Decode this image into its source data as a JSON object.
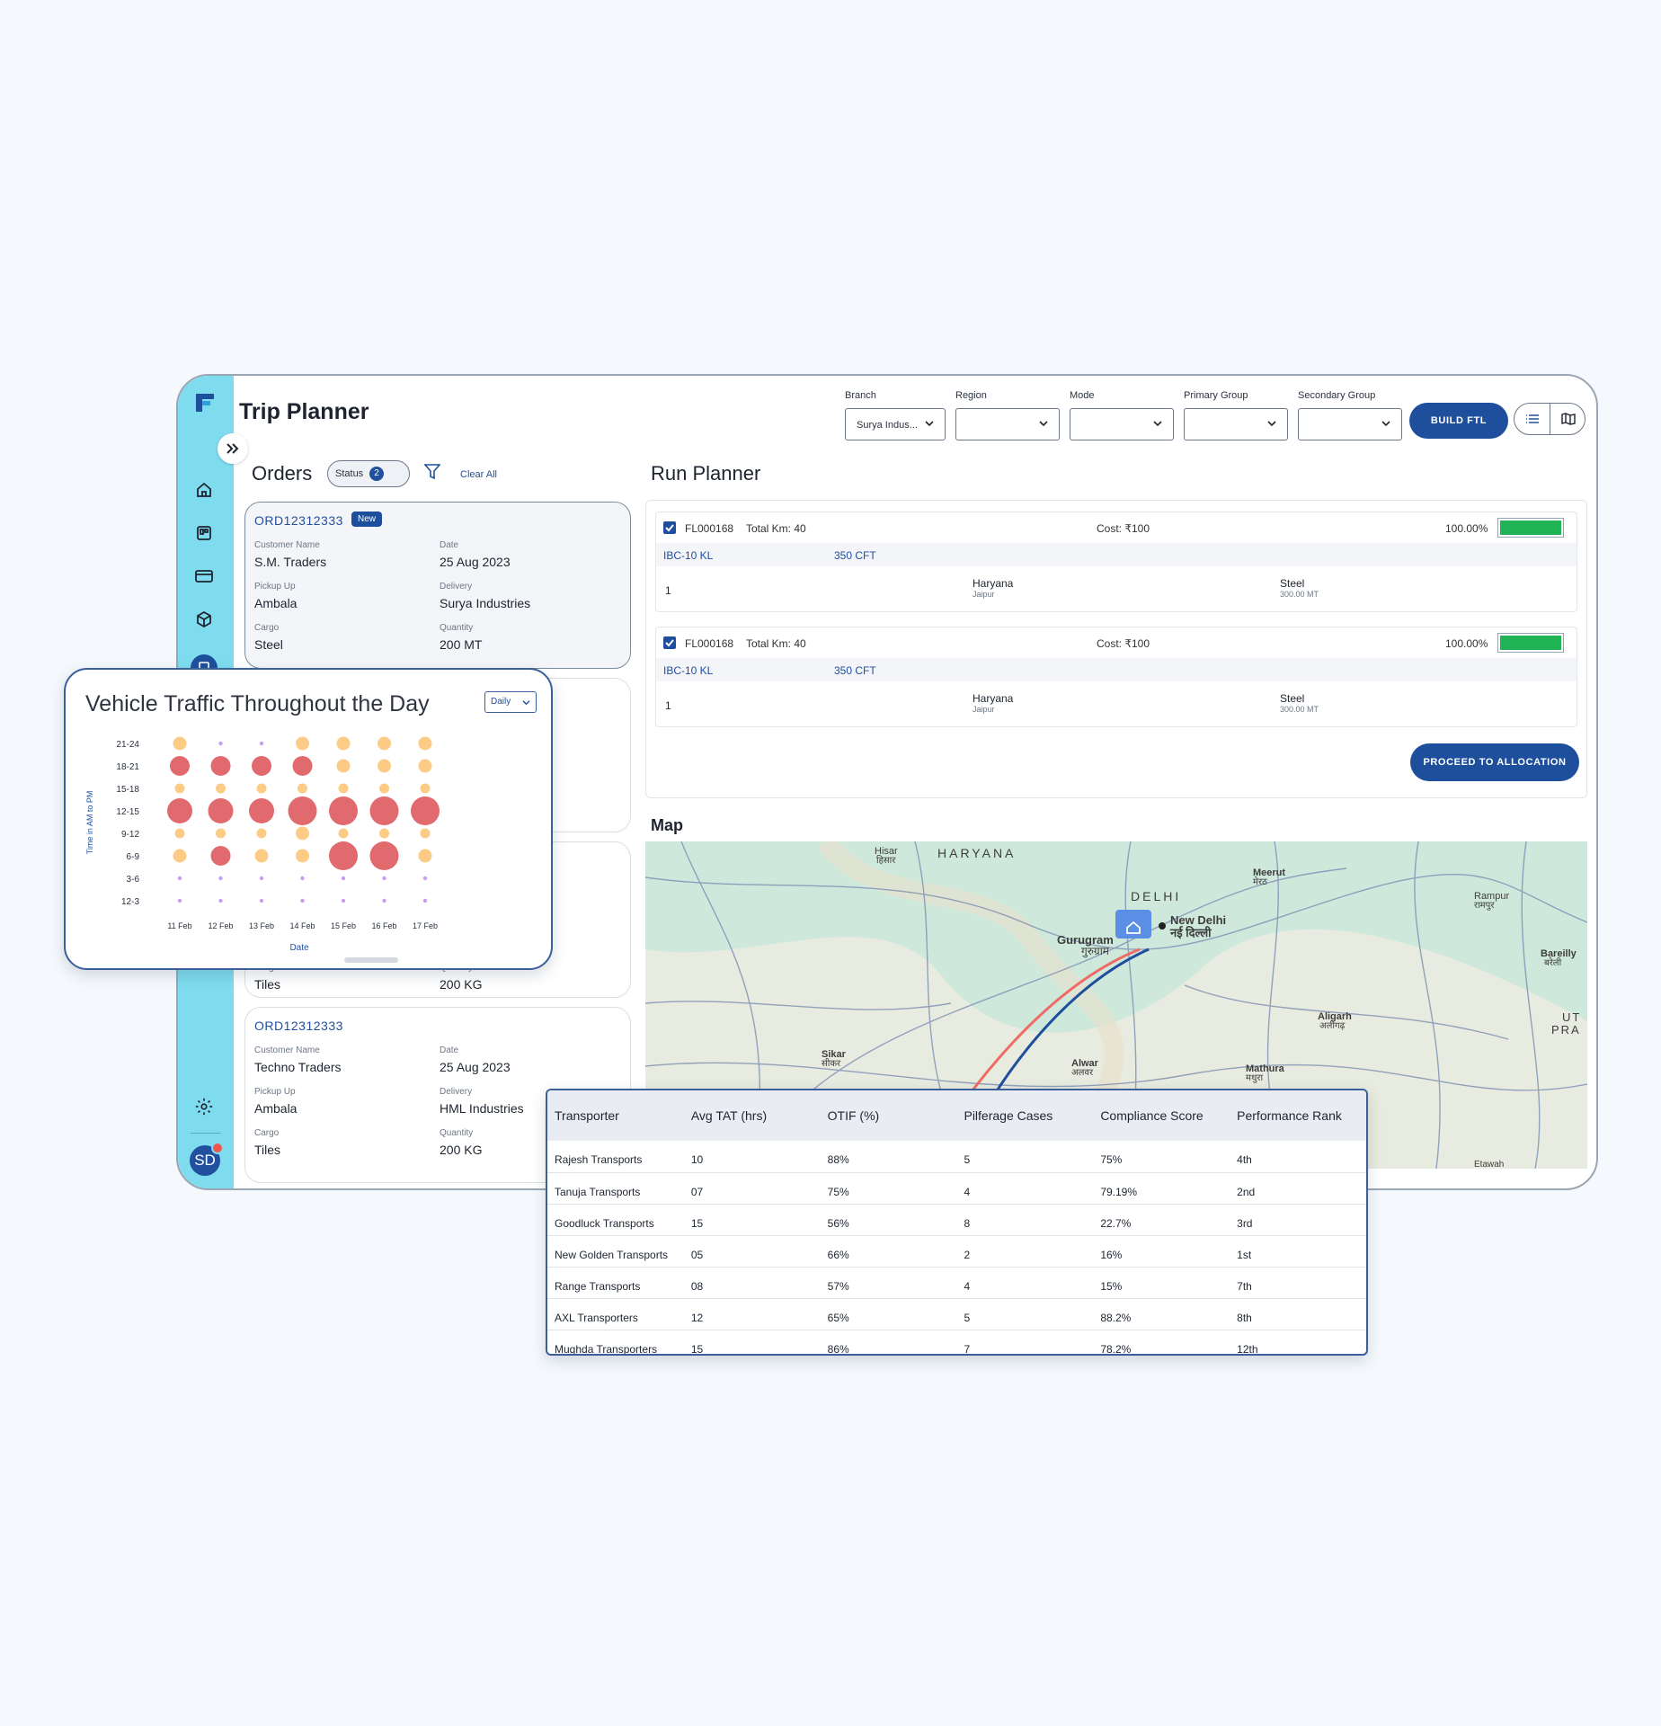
{
  "app": {
    "title": "Trip Planner"
  },
  "filters": [
    {
      "label": "Branch",
      "value": "Surya Indus..."
    },
    {
      "label": "Region",
      "value": ""
    },
    {
      "label": "Mode",
      "value": ""
    },
    {
      "label": "Primary Group",
      "value": ""
    },
    {
      "label": "Secondary Group",
      "value": ""
    }
  ],
  "toolbar": {
    "build_ftl": "BUILD FTL",
    "list_view_icon": "list-icon",
    "map_view_icon": "map-icon"
  },
  "sidebar": {
    "icons": [
      "home-icon",
      "board-icon",
      "card-icon",
      "box-icon",
      "document-icon"
    ],
    "settings_icon": "gear-icon",
    "avatar": "SD"
  },
  "orders": {
    "heading": "Orders",
    "status_label": "Status",
    "status_count": "2",
    "clear_all": "Clear All",
    "cards": [
      {
        "id": "ORD12312333",
        "badge": "New",
        "customer_label": "Customer Name",
        "customer": "S.M. Traders",
        "date_label": "Date",
        "date": "25 Aug 2023",
        "pickup_label": "Pickup Up",
        "pickup": "Ambala",
        "delivery_label": "Delivery",
        "delivery": "Surya Industries",
        "cargo_label": "Cargo",
        "cargo": "Steel",
        "quantity_label": "Quantity",
        "quantity": "200 MT"
      },
      {
        "cargo_label": "Cargo",
        "cargo": "Tiles",
        "quantity_label": "Quantity",
        "quantity": "200 KG"
      },
      {
        "id": "ORD12312333",
        "customer_label": "Customer Name",
        "customer": "Techno Traders",
        "date_label": "Date",
        "date": "25 Aug 2023",
        "pickup_label": "Pickup Up",
        "pickup": "Ambala",
        "delivery_label": "Delivery",
        "delivery": "HML Industries",
        "cargo_label": "Cargo",
        "cargo": "Tiles",
        "quantity_label": "Quantity",
        "quantity": "200 KG"
      }
    ]
  },
  "run_planner": {
    "heading": "Run Planner",
    "runs": [
      {
        "id": "FL000168",
        "total_km": "Total Km: 40",
        "cost": "Cost: ₹100",
        "percent": "100.00%",
        "fill": 1.0,
        "vehicle": "IBC-10 KL",
        "capacity": "350 CFT",
        "row_no": "1",
        "state": "Haryana",
        "city": "Jaipur",
        "material": "Steel",
        "weight": "300.00 MT"
      },
      {
        "id": "FL000168",
        "total_km": "Total Km: 40",
        "cost": "Cost: ₹100",
        "percent": "100.00%",
        "fill": 1.0,
        "vehicle": "IBC-10 KL",
        "capacity": "350 CFT",
        "row_no": "1",
        "state": "Haryana",
        "city": "Jaipur",
        "material": "Steel",
        "weight": "300.00 MT"
      }
    ],
    "proceed": "PROCEED TO ALLOCATION"
  },
  "map": {
    "heading": "Map",
    "labels": [
      "HARYANA",
      "Hisar",
      "हिसार",
      "DELHI",
      "New Delhi",
      "नई दिल्ली",
      "Gurugram",
      "गुरुग्राम",
      "Meerut",
      "मेरठ",
      "Rampur",
      "रामपुर",
      "Bareilly",
      "बरेली",
      "Aligarh",
      "अलीगढ़",
      "Mathura",
      "मथुरा",
      "Sikar",
      "सीकर",
      "Alwar",
      "अलवर",
      "UT",
      "PRA",
      "Etawah"
    ],
    "colors": {
      "route_a": "#ee6b66",
      "route_b": "#1f4f9c",
      "pin": "#5b8fe6"
    }
  },
  "chart_card": {
    "title": "Vehicle Traffic Throughout the Day",
    "period": "Daily"
  },
  "chart_data": {
    "type": "scatter",
    "title": "Vehicle Traffic Throughout the Day",
    "xlabel": "Date",
    "ylabel": "Time in AM to PM",
    "categories": [
      "11 Feb",
      "12 Feb",
      "13 Feb",
      "14 Feb",
      "15 Feb",
      "16 Feb",
      "17 Feb"
    ],
    "y_categories": [
      "12-3",
      "3-6",
      "6-9",
      "9-12",
      "12-15",
      "15-18",
      "18-21",
      "21-24"
    ],
    "level_colors": {
      "low": "#c79df0",
      "medium": "#fccb86",
      "high": "#e06a6e"
    },
    "points": [
      {
        "x": "11 Feb",
        "y": "21-24",
        "size": 3,
        "level": "medium"
      },
      {
        "x": "12 Feb",
        "y": "21-24",
        "size": 1,
        "level": "low"
      },
      {
        "x": "13 Feb",
        "y": "21-24",
        "size": 1,
        "level": "low"
      },
      {
        "x": "14 Feb",
        "y": "21-24",
        "size": 3,
        "level": "medium"
      },
      {
        "x": "15 Feb",
        "y": "21-24",
        "size": 3,
        "level": "medium"
      },
      {
        "x": "16 Feb",
        "y": "21-24",
        "size": 3,
        "level": "medium"
      },
      {
        "x": "17 Feb",
        "y": "21-24",
        "size": 3,
        "level": "medium"
      },
      {
        "x": "11 Feb",
        "y": "18-21",
        "size": 4,
        "level": "high"
      },
      {
        "x": "12 Feb",
        "y": "18-21",
        "size": 4,
        "level": "high"
      },
      {
        "x": "13 Feb",
        "y": "18-21",
        "size": 4,
        "level": "high"
      },
      {
        "x": "14 Feb",
        "y": "18-21",
        "size": 4,
        "level": "high"
      },
      {
        "x": "15 Feb",
        "y": "18-21",
        "size": 3,
        "level": "medium"
      },
      {
        "x": "16 Feb",
        "y": "18-21",
        "size": 3,
        "level": "medium"
      },
      {
        "x": "17 Feb",
        "y": "18-21",
        "size": 3,
        "level": "medium"
      },
      {
        "x": "11 Feb",
        "y": "15-18",
        "size": 2,
        "level": "medium"
      },
      {
        "x": "12 Feb",
        "y": "15-18",
        "size": 2,
        "level": "medium"
      },
      {
        "x": "13 Feb",
        "y": "15-18",
        "size": 2,
        "level": "medium"
      },
      {
        "x": "14 Feb",
        "y": "15-18",
        "size": 2,
        "level": "medium"
      },
      {
        "x": "15 Feb",
        "y": "15-18",
        "size": 2,
        "level": "medium"
      },
      {
        "x": "16 Feb",
        "y": "15-18",
        "size": 2,
        "level": "medium"
      },
      {
        "x": "17 Feb",
        "y": "15-18",
        "size": 2,
        "level": "medium"
      },
      {
        "x": "11 Feb",
        "y": "12-15",
        "size": 5,
        "level": "high"
      },
      {
        "x": "12 Feb",
        "y": "12-15",
        "size": 5,
        "level": "high"
      },
      {
        "x": "13 Feb",
        "y": "12-15",
        "size": 5,
        "level": "high"
      },
      {
        "x": "14 Feb",
        "y": "12-15",
        "size": 6,
        "level": "high"
      },
      {
        "x": "15 Feb",
        "y": "12-15",
        "size": 6,
        "level": "high"
      },
      {
        "x": "16 Feb",
        "y": "12-15",
        "size": 6,
        "level": "high"
      },
      {
        "x": "17 Feb",
        "y": "12-15",
        "size": 6,
        "level": "high"
      },
      {
        "x": "11 Feb",
        "y": "9-12",
        "size": 2,
        "level": "medium"
      },
      {
        "x": "12 Feb",
        "y": "9-12",
        "size": 2,
        "level": "medium"
      },
      {
        "x": "13 Feb",
        "y": "9-12",
        "size": 2,
        "level": "medium"
      },
      {
        "x": "14 Feb",
        "y": "9-12",
        "size": 3,
        "level": "medium"
      },
      {
        "x": "15 Feb",
        "y": "9-12",
        "size": 2,
        "level": "medium"
      },
      {
        "x": "16 Feb",
        "y": "9-12",
        "size": 2,
        "level": "medium"
      },
      {
        "x": "17 Feb",
        "y": "9-12",
        "size": 2,
        "level": "medium"
      },
      {
        "x": "11 Feb",
        "y": "6-9",
        "size": 3,
        "level": "medium"
      },
      {
        "x": "12 Feb",
        "y": "6-9",
        "size": 4,
        "level": "high"
      },
      {
        "x": "13 Feb",
        "y": "6-9",
        "size": 3,
        "level": "medium"
      },
      {
        "x": "14 Feb",
        "y": "6-9",
        "size": 3,
        "level": "medium"
      },
      {
        "x": "15 Feb",
        "y": "6-9",
        "size": 6,
        "level": "high"
      },
      {
        "x": "16 Feb",
        "y": "6-9",
        "size": 6,
        "level": "high"
      },
      {
        "x": "17 Feb",
        "y": "6-9",
        "size": 3,
        "level": "medium"
      },
      {
        "x": "11 Feb",
        "y": "3-6",
        "size": 1,
        "level": "low"
      },
      {
        "x": "12 Feb",
        "y": "3-6",
        "size": 1,
        "level": "low"
      },
      {
        "x": "13 Feb",
        "y": "3-6",
        "size": 1,
        "level": "low"
      },
      {
        "x": "14 Feb",
        "y": "3-6",
        "size": 1,
        "level": "low"
      },
      {
        "x": "15 Feb",
        "y": "3-6",
        "size": 1,
        "level": "low"
      },
      {
        "x": "16 Feb",
        "y": "3-6",
        "size": 1,
        "level": "low"
      },
      {
        "x": "17 Feb",
        "y": "3-6",
        "size": 1,
        "level": "low"
      },
      {
        "x": "11 Feb",
        "y": "12-3",
        "size": 1,
        "level": "low"
      },
      {
        "x": "12 Feb",
        "y": "12-3",
        "size": 1,
        "level": "low"
      },
      {
        "x": "13 Feb",
        "y": "12-3",
        "size": 1,
        "level": "low"
      },
      {
        "x": "14 Feb",
        "y": "12-3",
        "size": 1,
        "level": "low"
      },
      {
        "x": "15 Feb",
        "y": "12-3",
        "size": 1,
        "level": "low"
      },
      {
        "x": "16 Feb",
        "y": "12-3",
        "size": 1,
        "level": "low"
      },
      {
        "x": "17 Feb",
        "y": "12-3",
        "size": 1,
        "level": "low"
      }
    ]
  },
  "transporters": {
    "columns": [
      "Transporter",
      "Avg TAT (hrs)",
      "OTIF (%)",
      "Pilferage Cases",
      "Compliance Score",
      "Performance Rank"
    ],
    "rows": [
      [
        "Rajesh Transports",
        "10",
        "88%",
        "5",
        "75%",
        "4th"
      ],
      [
        "Tanuja Transports",
        "07",
        "75%",
        "4",
        "79.19%",
        "2nd"
      ],
      [
        "Goodluck Transports",
        "15",
        "56%",
        "8",
        "22.7%",
        "3rd"
      ],
      [
        "New Golden Transports",
        "05",
        "66%",
        "2",
        "16%",
        "1st"
      ],
      [
        "Range Transports",
        "08",
        "57%",
        "4",
        "15%",
        "7th"
      ],
      [
        "AXL Transporters",
        "12",
        "65%",
        "5",
        "88.2%",
        "8th"
      ],
      [
        "Mughda Transporters",
        "15",
        "86%",
        "7",
        "78.2%",
        "12th"
      ]
    ]
  }
}
